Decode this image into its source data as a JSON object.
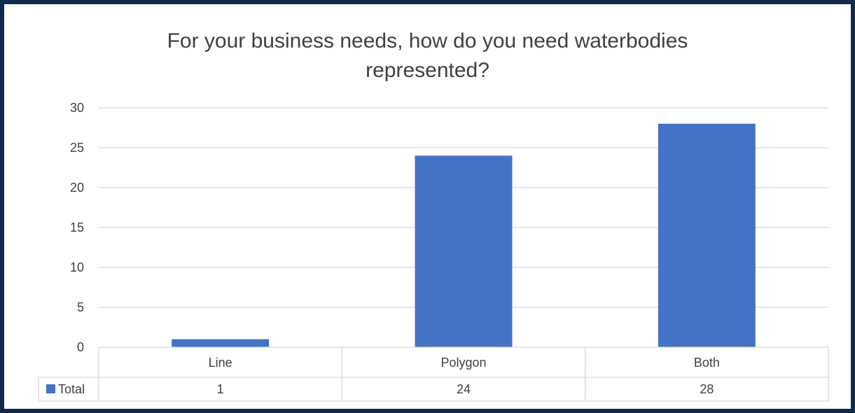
{
  "chart_data": {
    "type": "bar",
    "title_line1": "For your business needs, how do you need waterbodies",
    "title_line2": "represented?",
    "categories": [
      "Line",
      "Polygon",
      "Both"
    ],
    "series": [
      {
        "name": "Total",
        "values": [
          1,
          24,
          28
        ],
        "color": "#4472C4"
      }
    ],
    "ylim": [
      0,
      30
    ],
    "yticks": [
      0,
      5,
      10,
      15,
      20,
      25,
      30
    ],
    "grid": true,
    "legend": "data-table",
    "colors": {
      "bar": "#4472C4",
      "grid": "#d9d9d9",
      "text": "#404040",
      "frame": "#10294f"
    }
  }
}
